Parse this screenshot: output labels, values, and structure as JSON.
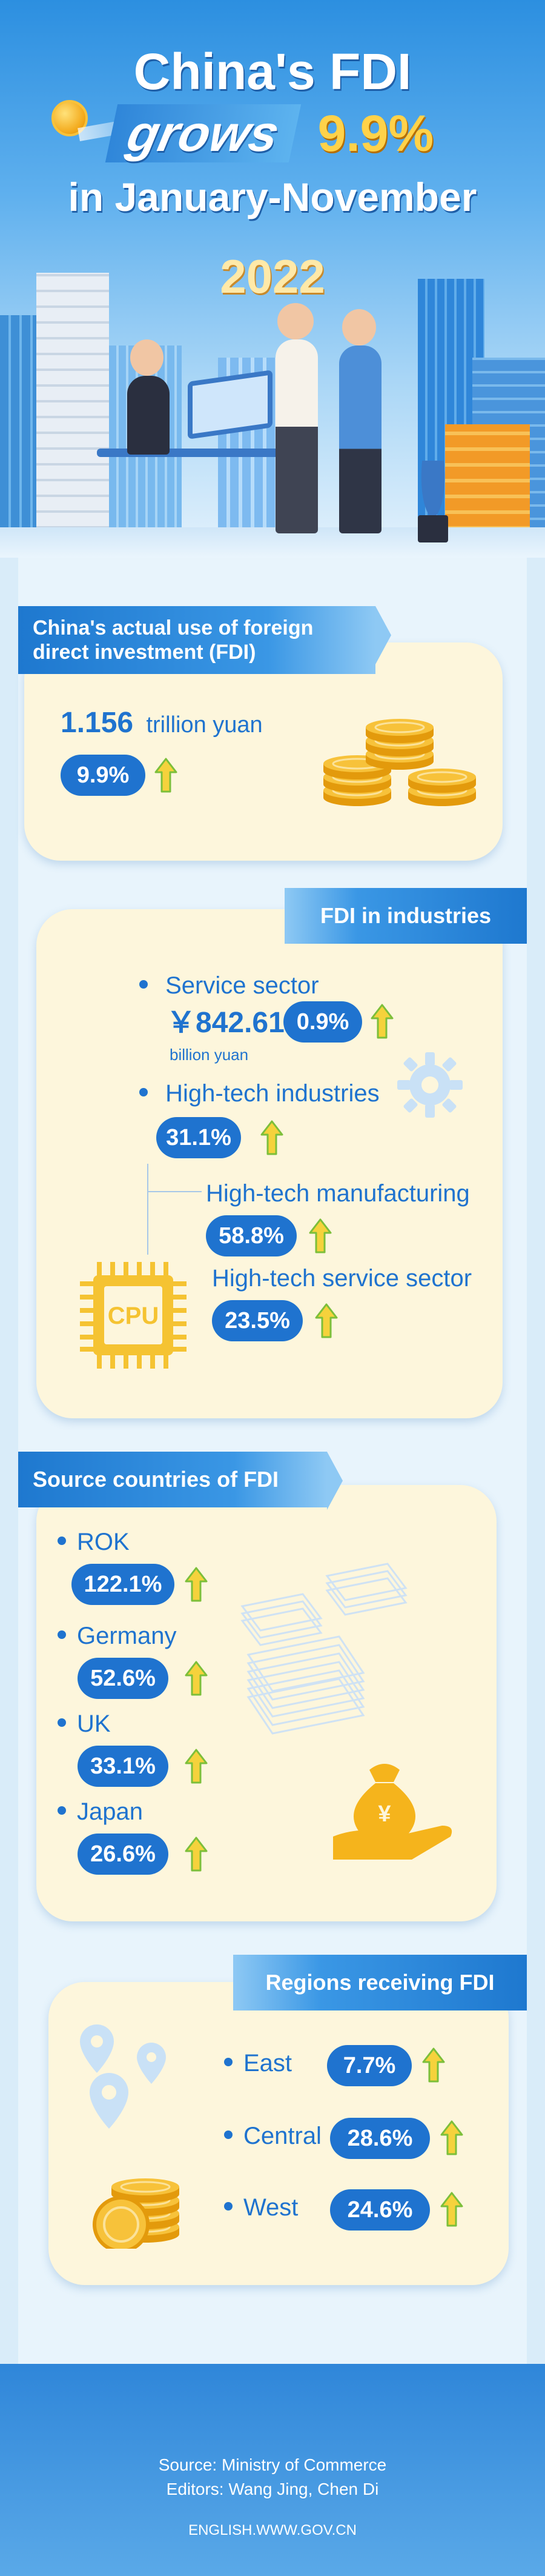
{
  "header": {
    "title_line1": "China's FDI",
    "title_word": "grows",
    "title_pct": "9.9%",
    "title_line3": "in January-November",
    "year": "2022"
  },
  "actual_use": {
    "heading": "China's actual use of foreign direct investment (FDI)",
    "amount": "1.156",
    "amount_unit": "trillion yuan",
    "growth": "9.9%",
    "icon": "coin-stack-icon"
  },
  "industries": {
    "heading": "FDI in industries",
    "service_label": "Service sector",
    "service_amount": "￥842.61",
    "service_unit": "billion yuan",
    "service_growth": "0.9%",
    "hightech_label": "High-tech industries",
    "hightech_growth": "31.1%",
    "manufacturing_label": "High-tech manufacturing",
    "manufacturing_growth": "58.8%",
    "service_ht_label": "High-tech service sector",
    "service_ht_growth": "23.5%",
    "cpu_text": "CPU",
    "icons": [
      "gear-icon",
      "cpu-chip-icon"
    ]
  },
  "sources": {
    "heading": "Source countries of FDI",
    "items": [
      {
        "label": "ROK",
        "growth": "122.1%"
      },
      {
        "label": "Germany",
        "growth": "52.6%"
      },
      {
        "label": "UK",
        "growth": "33.1%"
      },
      {
        "label": "Japan",
        "growth": "26.6%"
      }
    ],
    "icons": [
      "banknote-stack-icon",
      "money-bag-hand-icon"
    ]
  },
  "regions": {
    "heading": "Regions receiving FDI",
    "items": [
      {
        "label": "East",
        "growth": "7.7%"
      },
      {
        "label": "Central",
        "growth": "28.6%"
      },
      {
        "label": "West",
        "growth": "24.6%"
      }
    ],
    "icons": [
      "map-pin-icon",
      "coin-stack-icon"
    ]
  },
  "footer": {
    "source": "Source: Ministry of Commerce",
    "editors": "Editors: Wang Jing, Chen Di",
    "site": "ENGLISH.WWW.GOV.CN"
  },
  "colors": {
    "accent_blue": "#1f73cf",
    "card_bg": "#fdf6dc",
    "arrow_yellow": "#f5d23c",
    "arrow_green": "#7cbf3a",
    "coin_gold": "#f2b21c"
  }
}
